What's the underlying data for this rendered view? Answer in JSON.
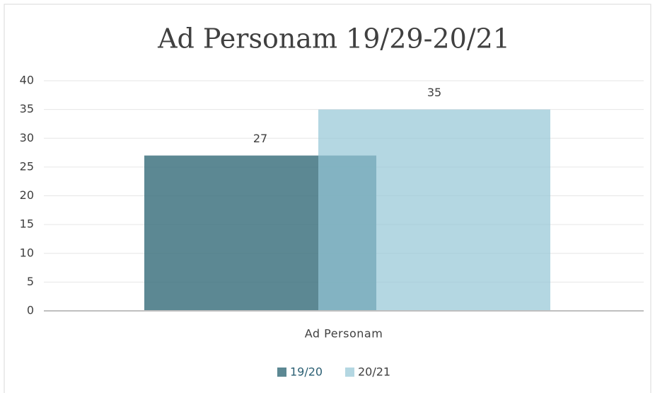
{
  "chart_data": {
    "type": "bar",
    "title": "Ad Personam 19/29-20/21",
    "categories": [
      "Ad Personam"
    ],
    "series": [
      {
        "name": "19/20",
        "color": "#3f7380",
        "values": [
          27
        ]
      },
      {
        "name": "20/21",
        "color": "#94c6d6",
        "values": [
          35
        ]
      }
    ],
    "ylim": [
      0,
      40
    ],
    "yticks": [
      0,
      5,
      10,
      15,
      20,
      25,
      30,
      35,
      40
    ],
    "grid": true,
    "legend": "bottom"
  }
}
